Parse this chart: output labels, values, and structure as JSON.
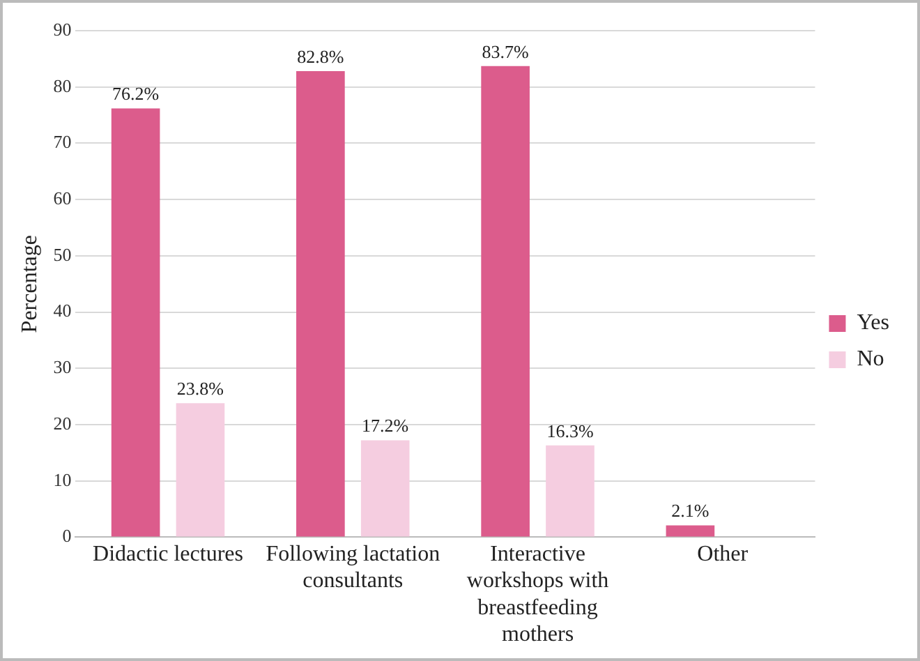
{
  "chart_data": {
    "type": "bar",
    "ylabel": "Percentage",
    "categories": [
      "Didactic lectures",
      "Following lactation consultants",
      "Interactive workshops with breastfeeding mothers",
      "Other"
    ],
    "series": [
      {
        "name": "Yes",
        "color": "#dc5c8c",
        "values": [
          76.2,
          82.8,
          83.7,
          2.1
        ],
        "value_labels": [
          "76.2%",
          "82.8%",
          "83.7%",
          "2.1%"
        ]
      },
      {
        "name": "No",
        "color": "#f5cde0",
        "values": [
          23.8,
          17.2,
          16.3,
          null
        ],
        "value_labels": [
          "23.8%",
          "17.2%",
          "16.3%",
          null
        ]
      }
    ],
    "ylim": [
      0,
      90
    ],
    "yticks": [
      0,
      10,
      20,
      30,
      40,
      50,
      60,
      70,
      80,
      90
    ],
    "grid": "y",
    "legend": "right"
  }
}
